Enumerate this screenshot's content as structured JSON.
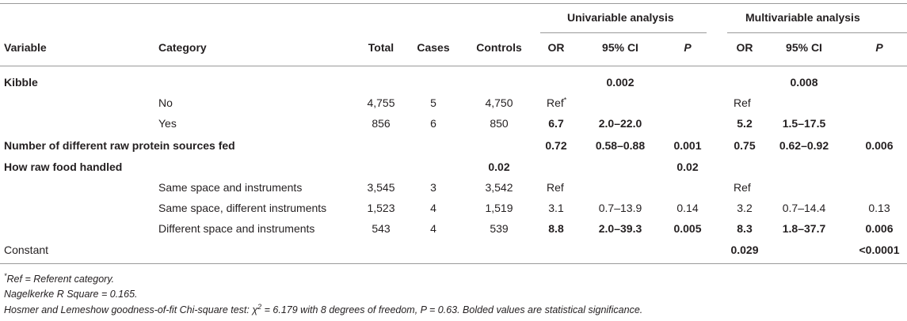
{
  "header": {
    "groups": {
      "univariable": "Univariable analysis",
      "multivariable": "Multivariable analysis"
    },
    "columns": [
      "Variable",
      "Category",
      "Total",
      "Cases",
      "Controls",
      "OR",
      "95% CI",
      "P",
      "OR",
      "95% CI",
      "P"
    ]
  },
  "rows": [
    {
      "variable": "Kibble",
      "category": "",
      "total": "",
      "cases": "",
      "controls": "",
      "or_u": "",
      "ci_u": "0.002",
      "p_u": "",
      "or_m": "",
      "ci_m": "0.008",
      "p_m": ""
    },
    {
      "variable": "",
      "category": "No",
      "total": "4,755",
      "cases": "5",
      "controls": "4,750",
      "or_u": "Ref*",
      "ci_u": "",
      "p_u": "",
      "or_m": "Ref",
      "ci_m": "",
      "p_m": ""
    },
    {
      "variable": "",
      "category": "Yes",
      "total": "856",
      "cases": "6",
      "controls": "850",
      "or_u": "6.7",
      "ci_u": "2.0–22.0",
      "p_u": "",
      "or_m": "5.2",
      "ci_m": "1.5–17.5",
      "p_m": ""
    },
    {
      "variable": "Number of different raw protein sources fed",
      "category": "",
      "total": "",
      "cases": "",
      "controls": "",
      "or_u": "0.72",
      "ci_u": "0.58–0.88",
      "p_u": "0.001",
      "or_m": "0.75",
      "ci_m": "0.62–0.92",
      "p_m": "0.006"
    },
    {
      "variable": "How raw food handled",
      "category": "",
      "total": "",
      "cases": "",
      "controls": "0.02",
      "or_u": "",
      "ci_u": "",
      "p_u": "0.02",
      "or_m": "",
      "ci_m": "",
      "p_m": ""
    },
    {
      "variable": "",
      "category": "Same space and instruments",
      "total": "3,545",
      "cases": "3",
      "controls": "3,542",
      "or_u": "Ref",
      "ci_u": "",
      "p_u": "",
      "or_m": "Ref",
      "ci_m": "",
      "p_m": ""
    },
    {
      "variable": "",
      "category": "Same space, different instruments",
      "total": "1,523",
      "cases": "4",
      "controls": "1,519",
      "or_u": "3.1",
      "ci_u": "0.7–13.9",
      "p_u": "0.14",
      "or_m": "3.2",
      "ci_m": "0.7–14.4",
      "p_m": "0.13"
    },
    {
      "variable": "",
      "category": "Different space and instruments",
      "total": "543",
      "cases": "4",
      "controls": "539",
      "or_u": "8.8",
      "ci_u": "2.0–39.3",
      "p_u": "0.005",
      "or_m": "8.3",
      "ci_m": "1.8–37.7",
      "p_m": "0.006"
    },
    {
      "variable": "Constant",
      "category": "",
      "total": "",
      "cases": "",
      "controls": "",
      "or_u": "",
      "ci_u": "",
      "p_u": "",
      "or_m": "0.029",
      "ci_m": "",
      "p_m": "<0.0001"
    }
  ],
  "footnotes": {
    "ref_mark": "*",
    "ref": "Ref = Referent category.",
    "nagelkerke": "Nagelkerke R Square = 0.165.",
    "hosmer_pre": "Hosmer and Lemeshow goodness-of-fit Chi-square test: χ",
    "hosmer_sup": "2",
    "hosmer_post": " = 6.179 with 8 degrees of freedom, P = 0.63. Bolded values are statistical significance."
  }
}
